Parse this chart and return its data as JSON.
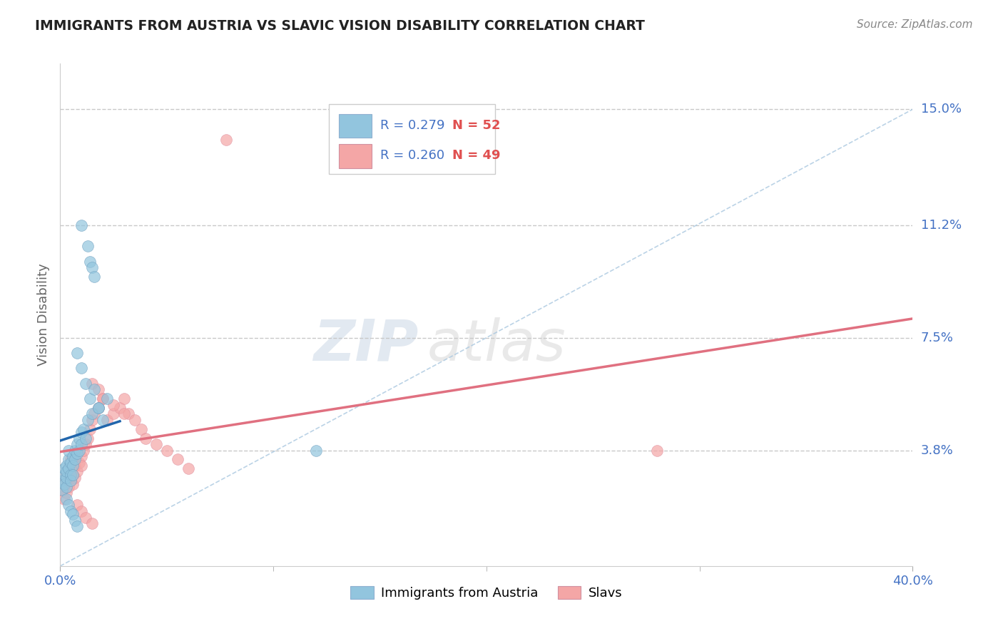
{
  "title": "IMMIGRANTS FROM AUSTRIA VS SLAVIC VISION DISABILITY CORRELATION CHART",
  "source": "Source: ZipAtlas.com",
  "ylabel": "Vision Disability",
  "xlim": [
    0.0,
    0.4
  ],
  "ylim": [
    0.0,
    0.165
  ],
  "ytick_values": [
    0.038,
    0.075,
    0.112,
    0.15
  ],
  "ytick_labels": [
    "3.8%",
    "7.5%",
    "11.2%",
    "15.0%"
  ],
  "legend1_r": "0.279",
  "legend1_n": "52",
  "legend2_r": "0.260",
  "legend2_n": "49",
  "blue_color": "#92c5de",
  "pink_color": "#f4a6a6",
  "blue_line_color": "#2166ac",
  "pink_line_color": "#e07080",
  "label1": "Immigrants from Austria",
  "label2": "Slavs",
  "watermark": "ZIPatlas",
  "background_color": "#ffffff",
  "grid_color": "#c8c8c8",
  "title_color": "#222222",
  "axis_label_color": "#666666",
  "tick_label_color": "#4472c4",
  "legend_r_color": "#4472c4",
  "legend_n_color": "#e05050"
}
